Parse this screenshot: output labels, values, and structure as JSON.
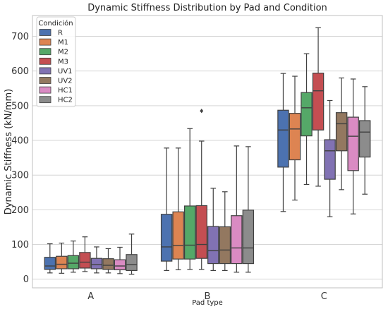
{
  "chart_data": {
    "type": "box",
    "title": "Dynamic Stiffness Distribution by Pad and Condition",
    "xlabel": "Pad type",
    "ylabel": "Dynamic Stiffness (kN/mm)",
    "categories": [
      "A",
      "B",
      "C"
    ],
    "ylim": [
      -25,
      760
    ],
    "yticks": [
      0,
      100,
      200,
      300,
      400,
      500,
      600,
      700
    ],
    "grid": true,
    "legend": {
      "title": "Condición",
      "placement": "top-left"
    },
    "series": [
      {
        "name": "R",
        "color": "#4c72b0",
        "boxes": [
          {
            "min": 18,
            "q1": 28,
            "median": 38,
            "q3": 63,
            "max": 102
          },
          {
            "min": 25,
            "q1": 52,
            "median": 93,
            "q3": 187,
            "max": 378
          },
          {
            "min": 195,
            "q1": 323,
            "median": 430,
            "q3": 487,
            "max": 593
          }
        ]
      },
      {
        "name": "M1",
        "color": "#dd8452",
        "boxes": [
          {
            "min": 17,
            "q1": 30,
            "median": 43,
            "q3": 66,
            "max": 104
          },
          {
            "min": 27,
            "q1": 58,
            "median": 97,
            "q3": 194,
            "max": 378
          },
          {
            "min": 228,
            "q1": 344,
            "median": 433,
            "q3": 478,
            "max": 585
          }
        ]
      },
      {
        "name": "M2",
        "color": "#55a868",
        "boxes": [
          {
            "min": 20,
            "q1": 30,
            "median": 46,
            "q3": 68,
            "max": 110
          },
          {
            "min": 28,
            "q1": 58,
            "median": 98,
            "q3": 211,
            "max": 434
          },
          {
            "min": 273,
            "q1": 413,
            "median": 494,
            "q3": 538,
            "max": 650
          }
        ]
      },
      {
        "name": "M3",
        "color": "#c44e52",
        "boxes": [
          {
            "min": 22,
            "q1": 32,
            "median": 49,
            "q3": 77,
            "max": 122
          },
          {
            "min": 28,
            "q1": 60,
            "median": 100,
            "q3": 212,
            "max": 398
          },
          {
            "min": 268,
            "q1": 430,
            "median": 543,
            "q3": 594,
            "max": 725
          }
        ]
      },
      {
        "name": "UV1",
        "color": "#8172b3",
        "boxes": [
          {
            "min": 18,
            "q1": 30,
            "median": 42,
            "q3": 60,
            "max": 93
          },
          {
            "min": 25,
            "q1": 45,
            "median": 82,
            "q3": 152,
            "max": 262
          },
          {
            "min": 180,
            "q1": 288,
            "median": 370,
            "q3": 402,
            "max": 515
          }
        ]
      },
      {
        "name": "UV2",
        "color": "#937860",
        "boxes": [
          {
            "min": 18,
            "q1": 28,
            "median": 40,
            "q3": 59,
            "max": 88
          },
          {
            "min": 25,
            "q1": 45,
            "median": 84,
            "q3": 151,
            "max": 252
          },
          {
            "min": 258,
            "q1": 370,
            "median": 448,
            "q3": 480,
            "max": 580
          }
        ]
      },
      {
        "name": "HC1",
        "color": "#da8bc3",
        "boxes": [
          {
            "min": 16,
            "q1": 27,
            "median": 38,
            "q3": 56,
            "max": 92
          },
          {
            "min": 20,
            "q1": 45,
            "median": 90,
            "q3": 183,
            "max": 384
          },
          {
            "min": 188,
            "q1": 313,
            "median": 412,
            "q3": 467,
            "max": 577
          }
        ]
      },
      {
        "name": "HC2",
        "color": "#8c8c8c",
        "boxes": [
          {
            "min": 14,
            "q1": 25,
            "median": 42,
            "q3": 71,
            "max": 130
          },
          {
            "min": 20,
            "q1": 45,
            "median": 90,
            "q3": 199,
            "max": 382
          },
          {
            "min": 245,
            "q1": 352,
            "median": 424,
            "q3": 457,
            "max": 555
          }
        ]
      }
    ],
    "outliers": [
      {
        "category": "B",
        "series": "M3",
        "value": 485
      }
    ]
  }
}
